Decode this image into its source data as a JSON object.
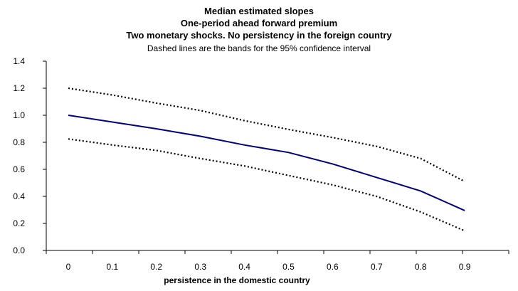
{
  "chart_data": {
    "type": "line",
    "title": "Median estimated slopes",
    "subtitle_lines": [
      "One-period ahead forward premium",
      "Two monetary shocks. No persistency in the foreign country"
    ],
    "note": "Dashed lines are the bands for the 95% confidence interval",
    "xlabel": "persistence in the domestic country",
    "ylabel": "",
    "x": [
      0,
      0.1,
      0.2,
      0.3,
      0.4,
      0.5,
      0.6,
      0.7,
      0.8,
      0.9
    ],
    "x_tick_labels": [
      "0",
      "0.1",
      "0.2",
      "0.3",
      "0.4",
      "0.5",
      "0.6",
      "0.7",
      "0.8",
      "0.9"
    ],
    "y_tick_labels": [
      "0.0",
      "0.2",
      "0.4",
      "0.6",
      "0.8",
      "1.0",
      "1.2",
      "1.4"
    ],
    "ylim": [
      0,
      1.4
    ],
    "grid": false,
    "series": [
      {
        "role": "median",
        "style": "solid",
        "color": "#000080",
        "values": [
          1.0,
          0.95,
          0.9,
          0.845,
          0.78,
          0.725,
          0.64,
          0.54,
          0.44,
          0.295
        ]
      },
      {
        "role": "upper-band",
        "style": "dashed",
        "color": "#000000",
        "values": [
          1.2,
          1.15,
          1.09,
          1.035,
          0.96,
          0.895,
          0.835,
          0.77,
          0.68,
          0.51
        ]
      },
      {
        "role": "lower-band",
        "style": "dashed",
        "color": "#000000",
        "values": [
          0.825,
          0.78,
          0.74,
          0.68,
          0.625,
          0.555,
          0.485,
          0.4,
          0.285,
          0.145
        ]
      }
    ]
  }
}
